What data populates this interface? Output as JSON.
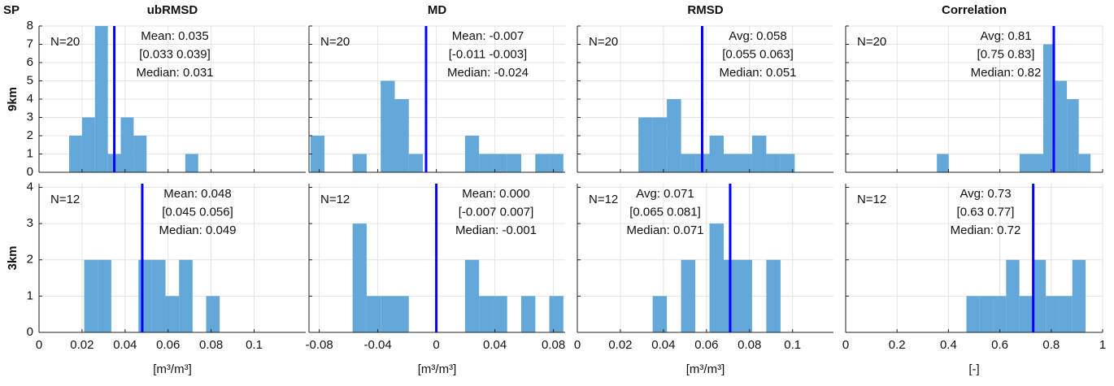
{
  "label": "SP",
  "chart_data": [
    {
      "type": "histogram",
      "title": "ubRMSD",
      "ylabel": "9km",
      "n_label": "N=20",
      "annotations": [
        "Mean: 0.035",
        "[0.033 0.039]",
        "Median: 0.031"
      ],
      "mean": 0.035,
      "bins": [
        0.014,
        0.02,
        0.026,
        0.032,
        0.038,
        0.044,
        0.05,
        0.056,
        0.062,
        0.068,
        0.074
      ],
      "values": [
        2,
        3,
        8,
        1,
        3,
        2,
        0,
        0,
        0,
        1
      ],
      "color": "#5ba3d6",
      "line_color": "#0000ff",
      "xlim": [
        0,
        0.124
      ],
      "xticks": [
        0,
        0.02,
        0.04,
        0.06,
        0.08,
        0.1
      ],
      "ylim": [
        0,
        8
      ],
      "yticks": [
        0,
        1,
        2,
        3,
        4,
        5,
        6,
        7,
        8
      ],
      "grid": true
    },
    {
      "type": "histogram",
      "title": "MD",
      "n_label": "N=20",
      "annotations": [
        "Mean: -0.007",
        "[-0.011 -0.003]",
        "Median: -0.024"
      ],
      "mean": -0.007,
      "bins": [
        -0.086,
        -0.0764,
        -0.0668,
        -0.0572,
        -0.0476,
        -0.038,
        -0.0284,
        -0.0188,
        -0.0092,
        0.0004,
        0.01,
        0.0196,
        0.0292,
        0.0388,
        0.0484,
        0.058,
        0.0676,
        0.0772,
        0.0868
      ],
      "values": [
        2,
        0,
        0,
        1,
        0,
        5,
        4,
        1,
        0,
        0,
        0,
        2,
        1,
        1,
        1,
        0,
        1,
        1
      ],
      "color": "#5ba3d6",
      "line_color": "#0000ff",
      "xlim": [
        -0.087,
        0.088
      ],
      "xticks": [
        -0.08,
        -0.04,
        0,
        0.04,
        0.08
      ],
      "ylim": [
        0,
        8
      ],
      "yticks": [
        0,
        1,
        2,
        3,
        4,
        5,
        6,
        7,
        8
      ],
      "grid": true
    },
    {
      "type": "histogram",
      "title": "RMSD",
      "n_label": "N=20",
      "annotations": [
        "Avg: 0.058",
        "[0.055 0.063]",
        "Median: 0.051"
      ],
      "mean": 0.058,
      "bins": [
        0.0284,
        0.035,
        0.0416,
        0.0482,
        0.0548,
        0.0614,
        0.068,
        0.0746,
        0.0812,
        0.0878,
        0.0944,
        0.101
      ],
      "values": [
        3,
        3,
        4,
        1,
        1,
        2,
        1,
        1,
        2,
        1,
        1
      ],
      "color": "#5ba3d6",
      "line_color": "#0000ff",
      "xlim": [
        0,
        0.119
      ],
      "xticks": [
        0,
        0.02,
        0.04,
        0.06,
        0.08,
        0.1
      ],
      "ylim": [
        0,
        8
      ],
      "yticks": [
        0,
        1,
        2,
        3,
        4,
        5,
        6,
        7,
        8
      ],
      "grid": true
    },
    {
      "type": "histogram",
      "title": "Correlation",
      "n_label": "N=20",
      "annotations": [
        "Avg: 0.81",
        "[0.75 0.83]",
        "Median: 0.82"
      ],
      "mean": 0.81,
      "bins": [
        0.355,
        0.401,
        0.447,
        0.493,
        0.539,
        0.585,
        0.631,
        0.677,
        0.723,
        0.769,
        0.815,
        0.861,
        0.907,
        0.953
      ],
      "values": [
        1,
        0,
        0,
        0,
        0,
        0,
        0,
        1,
        1,
        7,
        5,
        4,
        1
      ],
      "color": "#5ba3d6",
      "line_color": "#0000ff",
      "xlim": [
        0,
        1
      ],
      "xticks": [
        0,
        0.2,
        0.4,
        0.6,
        0.8,
        1
      ],
      "ylim": [
        0,
        8
      ],
      "yticks": [
        0,
        1,
        2,
        3,
        4,
        5,
        6,
        7,
        8
      ],
      "grid": true
    },
    {
      "type": "histogram",
      "ylabel": "3km",
      "xlabel": "[m³/m³]",
      "n_label": "N=12",
      "annotations": [
        "Mean: 0.048",
        "[0.045 0.056]",
        "Median: 0.049"
      ],
      "mean": 0.048,
      "bins": [
        0.021,
        0.0273,
        0.0336,
        0.0399,
        0.0462,
        0.0525,
        0.0588,
        0.0651,
        0.0714,
        0.0777,
        0.084
      ],
      "values": [
        2,
        2,
        0,
        0,
        2,
        2,
        1,
        2,
        0,
        1
      ],
      "color": "#5ba3d6",
      "line_color": "#0000ff",
      "xlim": [
        0,
        0.124
      ],
      "xticks": [
        0,
        0.02,
        0.04,
        0.06,
        0.08,
        0.1
      ],
      "ylim": [
        0,
        4.1
      ],
      "yticks": [
        0,
        1,
        2,
        3,
        4
      ],
      "grid": true
    },
    {
      "type": "histogram",
      "xlabel": "[m³/m³]",
      "n_label": "N=12",
      "annotations": [
        "Mean: 0.000",
        "[-0.007 0.007]",
        "Median: -0.001"
      ],
      "mean": 0.0,
      "bins": [
        -0.086,
        -0.0764,
        -0.0668,
        -0.0572,
        -0.0476,
        -0.038,
        -0.0284,
        -0.0188,
        -0.0092,
        0.0004,
        0.01,
        0.0196,
        0.0292,
        0.0388,
        0.0484,
        0.058,
        0.0676,
        0.0772,
        0.0868
      ],
      "values": [
        0,
        0,
        0,
        3,
        1,
        1,
        1,
        0,
        0,
        0,
        0,
        2,
        1,
        1,
        0,
        1,
        0,
        1
      ],
      "color": "#5ba3d6",
      "line_color": "#0000ff",
      "xlim": [
        -0.087,
        0.088
      ],
      "xticks": [
        -0.08,
        -0.04,
        0,
        0.04,
        0.08
      ],
      "ylim": [
        0,
        4.1
      ],
      "yticks": [
        0,
        1,
        2,
        3,
        4
      ],
      "grid": true
    },
    {
      "type": "histogram",
      "xlabel": "[m³/m³]",
      "n_label": "N=12",
      "annotations": [
        "Avg: 0.071",
        "[0.065 0.081]",
        "Median: 0.071"
      ],
      "mean": 0.071,
      "bins": [
        0.0284,
        0.035,
        0.0416,
        0.0482,
        0.0548,
        0.0614,
        0.068,
        0.0746,
        0.0812,
        0.0878,
        0.0944,
        0.101
      ],
      "values": [
        0,
        1,
        0,
        2,
        0,
        3,
        2,
        2,
        0,
        2,
        0
      ],
      "color": "#5ba3d6",
      "line_color": "#0000ff",
      "xlim": [
        0,
        0.119
      ],
      "xticks": [
        0,
        0.02,
        0.04,
        0.06,
        0.08,
        0.1
      ],
      "ylim": [
        0,
        4.1
      ],
      "yticks": [
        0,
        1,
        2,
        3,
        4
      ],
      "grid": true
    },
    {
      "type": "histogram",
      "xlabel": "[-]",
      "n_label": "N=12",
      "annotations": [
        "Avg: 0.73",
        "[0.63 0.77]",
        "Median: 0.72"
      ],
      "mean": 0.73,
      "bins": [
        0.47,
        0.5215,
        0.573,
        0.6245,
        0.676,
        0.7275,
        0.779,
        0.8305,
        0.882,
        0.9335
      ],
      "values": [
        1,
        1,
        1,
        2,
        1,
        2,
        1,
        1,
        2
      ],
      "color": "#5ba3d6",
      "line_color": "#0000ff",
      "xlim": [
        0,
        1
      ],
      "xticks": [
        0,
        0.2,
        0.4,
        0.6,
        0.8,
        1
      ],
      "ylim": [
        0,
        4.1
      ],
      "yticks": [
        0,
        1,
        2,
        3,
        4
      ],
      "grid": true
    }
  ]
}
